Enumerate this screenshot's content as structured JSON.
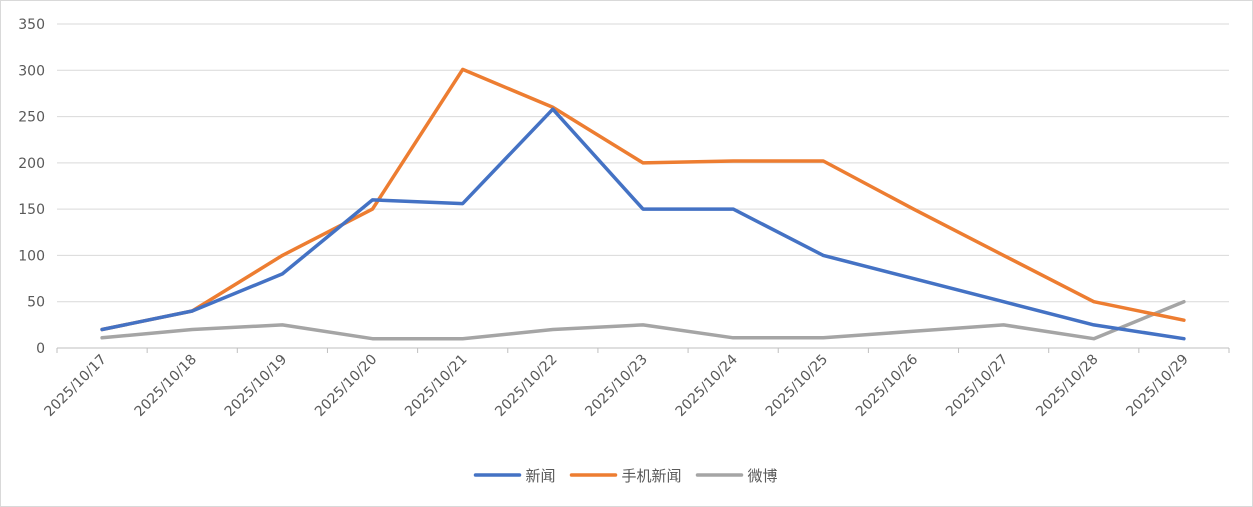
{
  "chart_data": {
    "type": "line",
    "title": "",
    "xlabel": "",
    "ylabel": "",
    "categories": [
      "2025/10/17",
      "2025/10/18",
      "2025/10/19",
      "2025/10/20",
      "2025/10/21",
      "2025/10/22",
      "2025/10/23",
      "2025/10/24",
      "2025/10/25",
      "2025/10/26",
      "2025/10/27",
      "2025/10/28",
      "2025/10/29"
    ],
    "yticks": [
      "0",
      "50",
      "100",
      "150",
      "200",
      "250",
      "300",
      "350"
    ],
    "ylim": [
      0,
      350
    ],
    "grid": true,
    "legend_position": "bottom",
    "series": [
      {
        "name": "新闻",
        "color": "#4472C4",
        "values": [
          20,
          40,
          80,
          160,
          156,
          258,
          150,
          150,
          100,
          75,
          50,
          25,
          10
        ]
      },
      {
        "name": "手机新闻",
        "color": "#ED7D31",
        "values": [
          20,
          40,
          100,
          150,
          301,
          260,
          200,
          202,
          202,
          150,
          100,
          50,
          30
        ]
      },
      {
        "name": "微博",
        "color": "#A5A5A5",
        "values": [
          11,
          20,
          25,
          10,
          10,
          20,
          25,
          11,
          11,
          18,
          25,
          10,
          50
        ]
      }
    ]
  }
}
